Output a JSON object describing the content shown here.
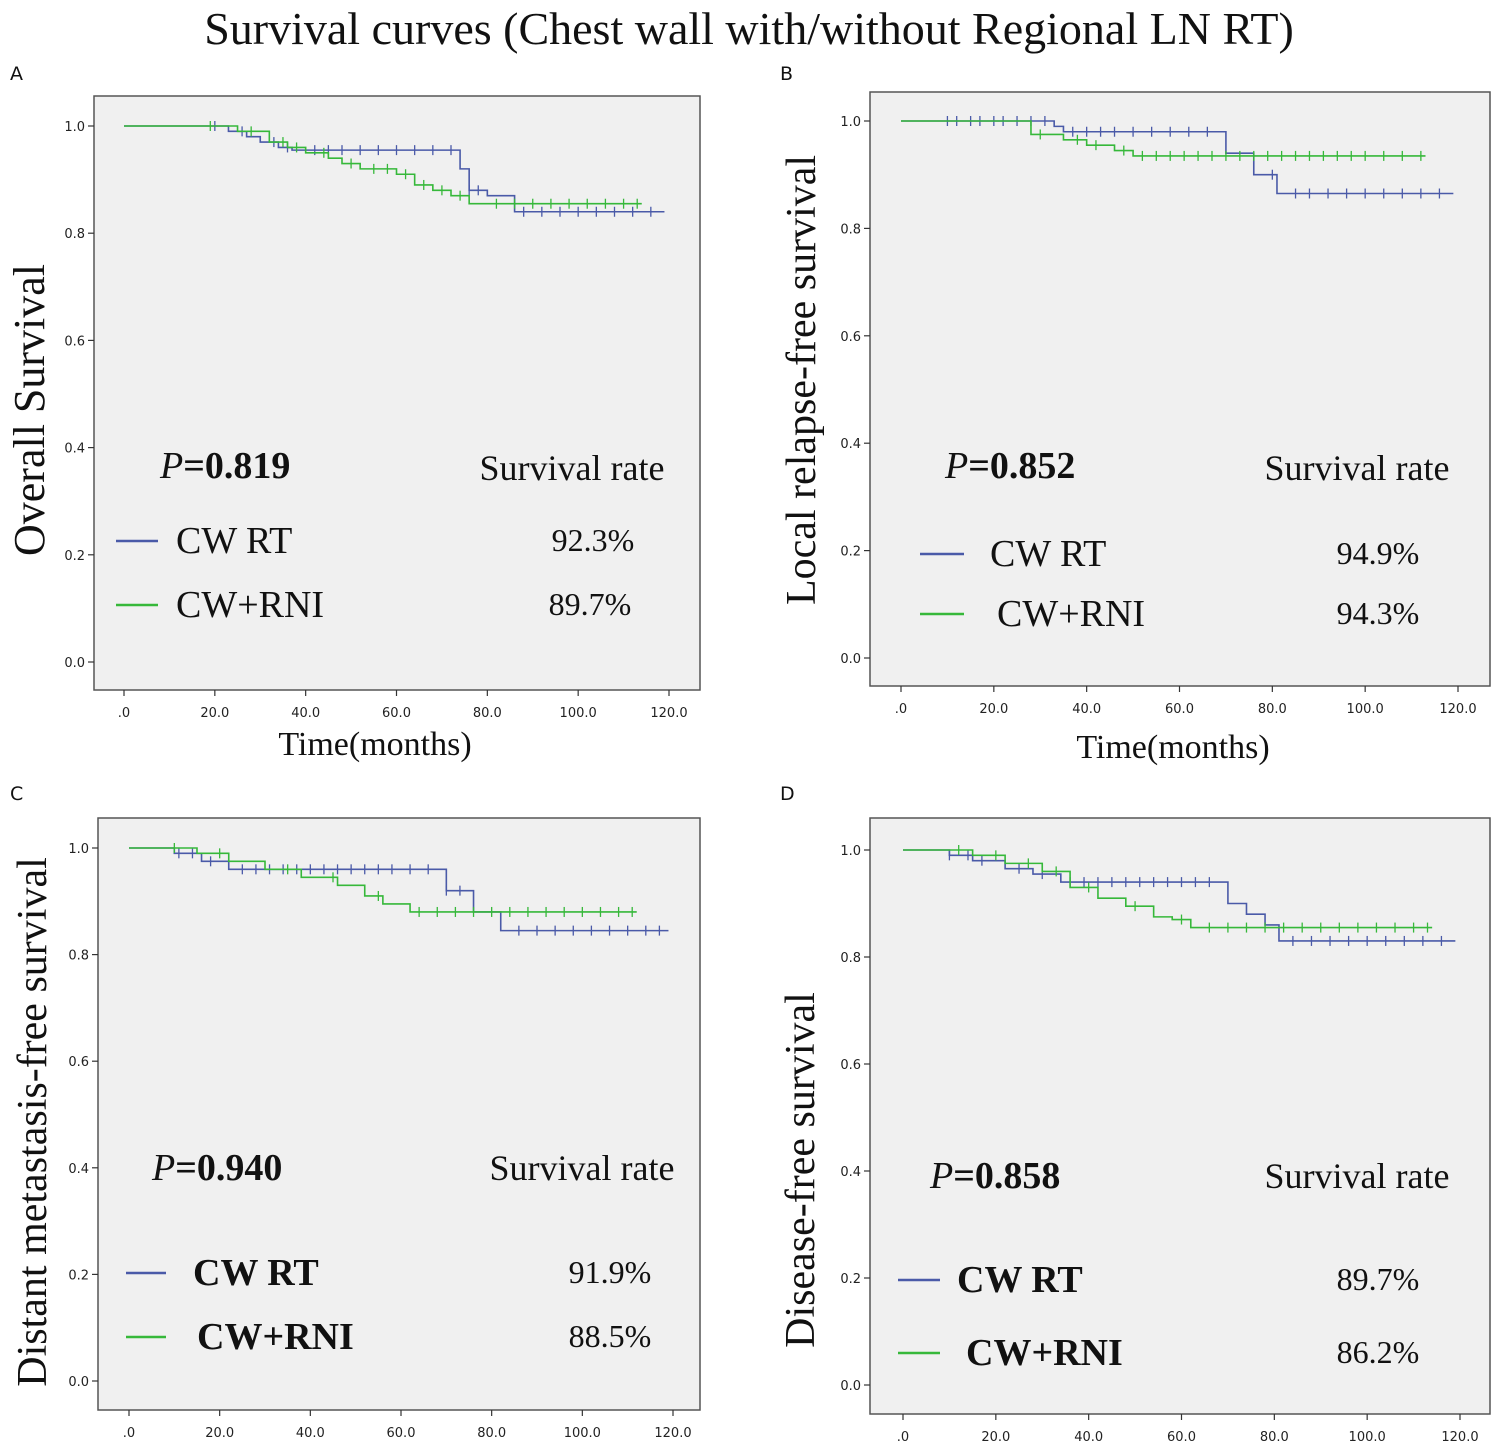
{
  "figure": {
    "title": "Survival curves (Chest wall with/without Regional LN RT)",
    "colors": {
      "cw_rt": "#4a5aa8",
      "cw_rni": "#36b83a"
    }
  },
  "chart_data": [
    {
      "type": "line",
      "panel": "A",
      "title": "",
      "xlabel": "Time(months)",
      "ylabel": "Overall Survival",
      "xlim": [
        0,
        120
      ],
      "ylim": [
        0,
        1.0
      ],
      "xticks": [
        ".0",
        "20.0",
        "40.0",
        "60.0",
        "80.0",
        "100.0",
        "120.0"
      ],
      "yticks": [
        "0.0",
        "0.2",
        "0.4",
        "0.6",
        "0.8",
        "1.0"
      ],
      "p_label": "P",
      "p_value": "=0.819",
      "rate_header": "Survival rate",
      "series": [
        {
          "name": "CW RT",
          "color": "#4a5aa8",
          "rate": "92.3%",
          "x": [
            0,
            23,
            27,
            30,
            34,
            37,
            40,
            74,
            76,
            80,
            86,
            119
          ],
          "y": [
            1.0,
            0.99,
            0.98,
            0.97,
            0.96,
            0.955,
            0.955,
            0.92,
            0.88,
            0.87,
            0.84,
            0.84
          ],
          "censor_x": [
            20,
            26,
            33,
            36,
            42,
            45,
            48,
            52,
            56,
            60,
            64,
            68,
            72,
            76,
            78,
            88,
            92,
            96,
            100,
            104,
            108,
            112,
            116
          ]
        },
        {
          "name": "CW+RNI",
          "color": "#36b83a",
          "rate": "89.7%",
          "x": [
            0,
            25,
            32,
            36,
            40,
            45,
            48,
            52,
            60,
            64,
            68,
            72,
            76,
            114
          ],
          "y": [
            1.0,
            0.99,
            0.97,
            0.96,
            0.95,
            0.94,
            0.93,
            0.92,
            0.91,
            0.89,
            0.88,
            0.87,
            0.855,
            0.855
          ],
          "censor_x": [
            19,
            28,
            35,
            38,
            44,
            50,
            55,
            58,
            62,
            66,
            70,
            74,
            82,
            86,
            90,
            94,
            98,
            102,
            106,
            110,
            113
          ]
        }
      ]
    },
    {
      "type": "line",
      "panel": "B",
      "title": "",
      "xlabel": "Time(months)",
      "ylabel": "Local relapse-free survival",
      "xlim": [
        0,
        120
      ],
      "ylim": [
        0,
        1.0
      ],
      "xticks": [
        ".0",
        "20.0",
        "40.0",
        "60.0",
        "80.0",
        "100.0",
        "120.0"
      ],
      "yticks": [
        "0.0",
        "0.2",
        "0.4",
        "0.6",
        "0.8",
        "1.0"
      ],
      "p_label": "P",
      "p_value": "=0.852",
      "rate_header": "Survival rate",
      "series": [
        {
          "name": "CW RT",
          "color": "#4a5aa8",
          "rate": "94.9%",
          "x": [
            0,
            33,
            35,
            70,
            76,
            81,
            119
          ],
          "y": [
            1.0,
            0.99,
            0.98,
            0.94,
            0.9,
            0.865,
            0.865
          ],
          "censor_x": [
            10,
            12,
            15,
            17,
            20,
            22,
            25,
            28,
            31,
            37,
            40,
            43,
            46,
            50,
            54,
            58,
            62,
            66,
            80,
            85,
            88,
            92,
            96,
            100,
            104,
            108,
            112,
            116
          ]
        },
        {
          "name": "CW+RNI",
          "color": "#36b83a",
          "rate": "94.3%",
          "x": [
            0,
            28,
            35,
            40,
            46,
            50,
            113
          ],
          "y": [
            1.0,
            0.975,
            0.965,
            0.955,
            0.945,
            0.935,
            0.935
          ],
          "censor_x": [
            30,
            38,
            42,
            48,
            52,
            55,
            58,
            61,
            64,
            67,
            70,
            73,
            76,
            79,
            82,
            85,
            88,
            91,
            94,
            97,
            100,
            104,
            108,
            112
          ]
        }
      ]
    },
    {
      "type": "line",
      "panel": "C",
      "title": "",
      "xlabel": "",
      "ylabel": "Distant metastasis-free  survival",
      "xlim": [
        0,
        120
      ],
      "ylim": [
        0,
        1.0
      ],
      "xticks": [
        ".0",
        "20.0",
        "40.0",
        "60.0",
        "80.0",
        "100.0",
        "120.0"
      ],
      "yticks": [
        "0.0",
        "0.2",
        "0.4",
        "0.6",
        "0.8",
        "1.0"
      ],
      "p_label": "P",
      "p_value": "=0.940",
      "rate_header": "Survival rate",
      "series": [
        {
          "name": "CW RT",
          "color": "#4a5aa8",
          "rate": "91.9%",
          "x": [
            0,
            10,
            16,
            22,
            70,
            76,
            82,
            119
          ],
          "y": [
            1.0,
            0.99,
            0.975,
            0.96,
            0.92,
            0.88,
            0.845,
            0.845
          ],
          "censor_x": [
            11,
            14,
            18,
            25,
            28,
            31,
            34,
            37,
            40,
            43,
            46,
            49,
            52,
            55,
            58,
            62,
            66,
            70,
            73,
            86,
            90,
            94,
            98,
            102,
            106,
            110,
            114,
            117
          ]
        },
        {
          "name": "CW+RNI",
          "color": "#36b83a",
          "rate": "88.5%",
          "x": [
            0,
            15,
            22,
            30,
            38,
            46,
            52,
            56,
            62,
            112
          ],
          "y": [
            1.0,
            0.99,
            0.975,
            0.96,
            0.945,
            0.93,
            0.91,
            0.895,
            0.88,
            0.88
          ],
          "censor_x": [
            10,
            20,
            35,
            45,
            55,
            64,
            68,
            72,
            76,
            80,
            84,
            88,
            92,
            96,
            100,
            104,
            108,
            111
          ]
        }
      ]
    },
    {
      "type": "line",
      "panel": "D",
      "title": "",
      "xlabel": "",
      "ylabel": "Disease-free survival",
      "xlim": [
        0,
        120
      ],
      "ylim": [
        0,
        1.0
      ],
      "xticks": [
        ".0",
        "20.0",
        "40.0",
        "60.0",
        "80.0",
        "100.0",
        "120.0"
      ],
      "yticks": [
        "0.0",
        "0.2",
        "0.4",
        "0.6",
        "0.8",
        "1.0"
      ],
      "p_label": "P",
      "p_value": "=0.858",
      "rate_header": "Survival rate",
      "series": [
        {
          "name": "CW RT",
          "color": "#4a5aa8",
          "rate": "89.7%",
          "x": [
            0,
            10,
            15,
            22,
            28,
            34,
            70,
            74,
            78,
            81,
            119
          ],
          "y": [
            1.0,
            0.99,
            0.98,
            0.965,
            0.955,
            0.94,
            0.9,
            0.88,
            0.86,
            0.83,
            0.83
          ],
          "censor_x": [
            10,
            14,
            17,
            25,
            30,
            36,
            39,
            42,
            45,
            48,
            51,
            54,
            57,
            60,
            63,
            66,
            84,
            88,
            92,
            96,
            100,
            104,
            108,
            112,
            116
          ]
        },
        {
          "name": "CW+RNI",
          "color": "#36b83a",
          "rate": "86.2%",
          "x": [
            0,
            15,
            22,
            30,
            36,
            42,
            48,
            54,
            58,
            62,
            114
          ],
          "y": [
            1.0,
            0.99,
            0.975,
            0.96,
            0.93,
            0.91,
            0.895,
            0.875,
            0.87,
            0.855,
            0.855
          ],
          "censor_x": [
            12,
            20,
            27,
            33,
            40,
            50,
            60,
            66,
            70,
            74,
            78,
            82,
            86,
            90,
            94,
            98,
            102,
            106,
            110,
            113
          ]
        }
      ]
    }
  ]
}
